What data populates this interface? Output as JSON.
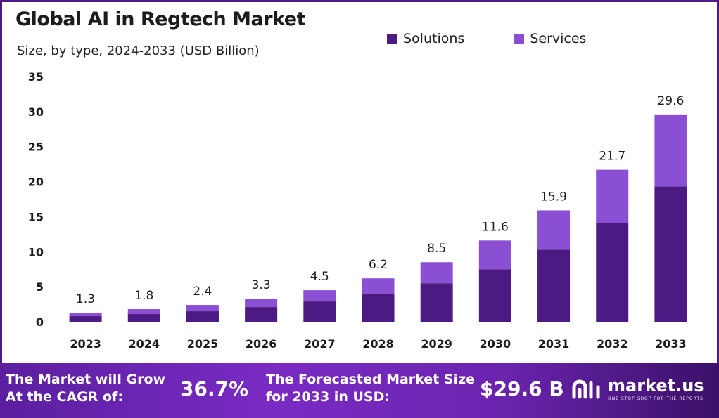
{
  "title": "Global AI in Regtech Market",
  "subtitle": "Size, by type, 2024-2033 (USD Billion)",
  "legend": [
    {
      "label": "Solutions",
      "color": "#4b1a82"
    },
    {
      "label": "Services",
      "color": "#8b4fd4"
    }
  ],
  "chart_data": {
    "type": "bar",
    "stacked": true,
    "title": "Global AI in Regtech Market",
    "subtitle": "Size, by type, 2024-2033 (USD Billion)",
    "categories": [
      "2023",
      "2024",
      "2025",
      "2026",
      "2027",
      "2028",
      "2029",
      "2030",
      "2031",
      "2032",
      "2033"
    ],
    "series": [
      {
        "name": "Solutions",
        "color": "#4b1a82",
        "values": [
          0.8,
          1.1,
          1.5,
          2.1,
          2.9,
          4.0,
          5.5,
          7.5,
          10.3,
          14.1,
          19.3
        ]
      },
      {
        "name": "Services",
        "color": "#8b4fd4",
        "values": [
          0.5,
          0.7,
          0.9,
          1.2,
          1.6,
          2.2,
          3.0,
          4.1,
          5.6,
          7.6,
          10.3
        ]
      }
    ],
    "totals": [
      "1.3",
      "1.8",
      "2.4",
      "3.3",
      "4.5",
      "6.2",
      "8.5",
      "11.6",
      "15.9",
      "21.7",
      "29.6"
    ],
    "ylim": [
      0,
      35
    ],
    "yticks": [
      "0",
      "5",
      "10",
      "15",
      "20",
      "25",
      "30",
      "35"
    ],
    "grid": false,
    "legend_position": "top-right"
  },
  "footer": {
    "grow_text": "The Market will Grow At the CAGR of:",
    "cagr": "36.7%",
    "forecast_text": "The Forecasted Market Size for  2033 in USD:",
    "forecast_value": "$29.6 B",
    "brand_name": "market.us",
    "brand_tagline": "ONE STOP SHOP FOR THE REPORTS"
  }
}
